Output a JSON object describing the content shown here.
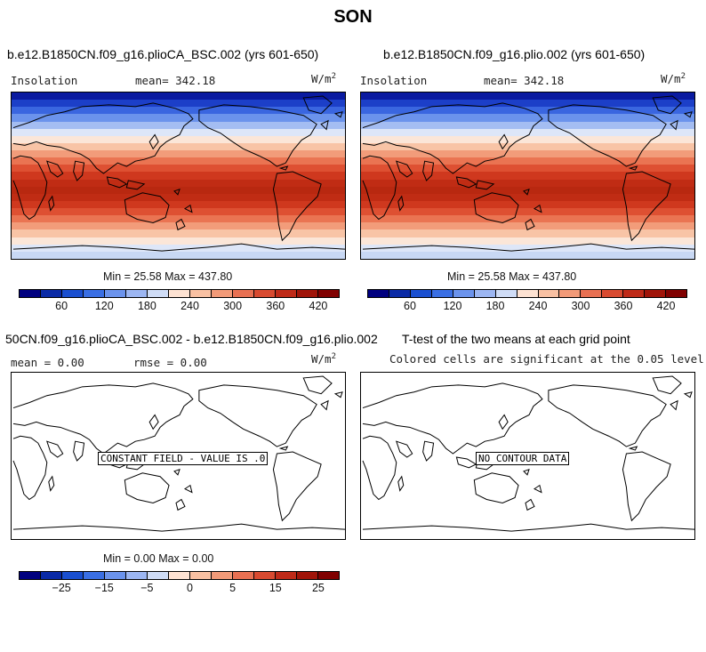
{
  "figure_title": "SON",
  "chart_data": [
    {
      "type": "heatmap",
      "title": "b.e12.B1850CN.f09_g16.plioCA_BSC.002 (yrs 601-650)",
      "variable": "Insolation",
      "units": "W/m",
      "units_exp": "2",
      "mean_label": "mean= 342.18",
      "minmax_label": "Min =  25.58 Max = 437.80",
      "field": "zonal bands, low in north/south polar caps, maximum near equator",
      "min": 25.58,
      "max": 437.8,
      "mean": 342.18,
      "colorbar_ticks": [
        "60",
        "120",
        "180",
        "240",
        "300",
        "360",
        "420"
      ]
    },
    {
      "type": "heatmap",
      "title": "b.e12.B1850CN.f09_g16.plio.002 (yrs 601-650)",
      "variable": "Insolation",
      "units": "W/m",
      "units_exp": "2",
      "mean_label": "mean= 342.18",
      "minmax_label": "Min =  25.58 Max = 437.80",
      "min": 25.58,
      "max": 437.8,
      "mean": 342.18,
      "colorbar_ticks": [
        "60",
        "120",
        "180",
        "240",
        "300",
        "360",
        "420"
      ]
    },
    {
      "type": "heatmap",
      "title": "50CN.f09_g16.plioCA_BSC.002 - b.e12.B1850CN.f09_g16.plio.002",
      "mean_label": "mean =   0.00",
      "rmse_label": "rmse =   0.00",
      "units": "W/m",
      "units_exp": "2",
      "center_label": "CONSTANT FIELD - VALUE IS .0",
      "minmax_label": "Min =   0.00 Max =   0.00",
      "min": 0.0,
      "max": 0.0,
      "mean": 0.0,
      "rmse": 0.0,
      "colorbar_ticks": [
        "−25",
        "−15",
        "−5",
        "0",
        "5",
        "15",
        "25"
      ]
    },
    {
      "type": "heatmap",
      "title": "T-test of the two means at each grid point",
      "subtitle": "Colored cells are significant at the 0.05 level",
      "center_label": "NO CONTOUR DATA"
    }
  ],
  "colors": {
    "colorbar": [
      "#00007f",
      "#0a2aa6",
      "#1a4fd0",
      "#3a6fe4",
      "#6b93ec",
      "#9cb6f2",
      "#cfdcf6",
      "#fde2d2",
      "#f8c0a2",
      "#f29a78",
      "#e87052",
      "#d84a30",
      "#bf2a18",
      "#a01409",
      "#800000"
    ],
    "insolation_bands": [
      "#0a1aa0",
      "#1c3fc8",
      "#3a66e0",
      "#6b93ec",
      "#a4bdf2",
      "#dde6f8",
      "#fbe6d8",
      "#f8c4a6",
      "#f29c7a",
      "#ea7452",
      "#de5032",
      "#cf381e",
      "#c02c14",
      "#b82810",
      "#c02c14",
      "#cf381e",
      "#de5032",
      "#ea7452",
      "#f29c7a",
      "#f8c4a6",
      "#fbe6d8",
      "#dde6f8",
      "#c8d8f4"
    ]
  }
}
